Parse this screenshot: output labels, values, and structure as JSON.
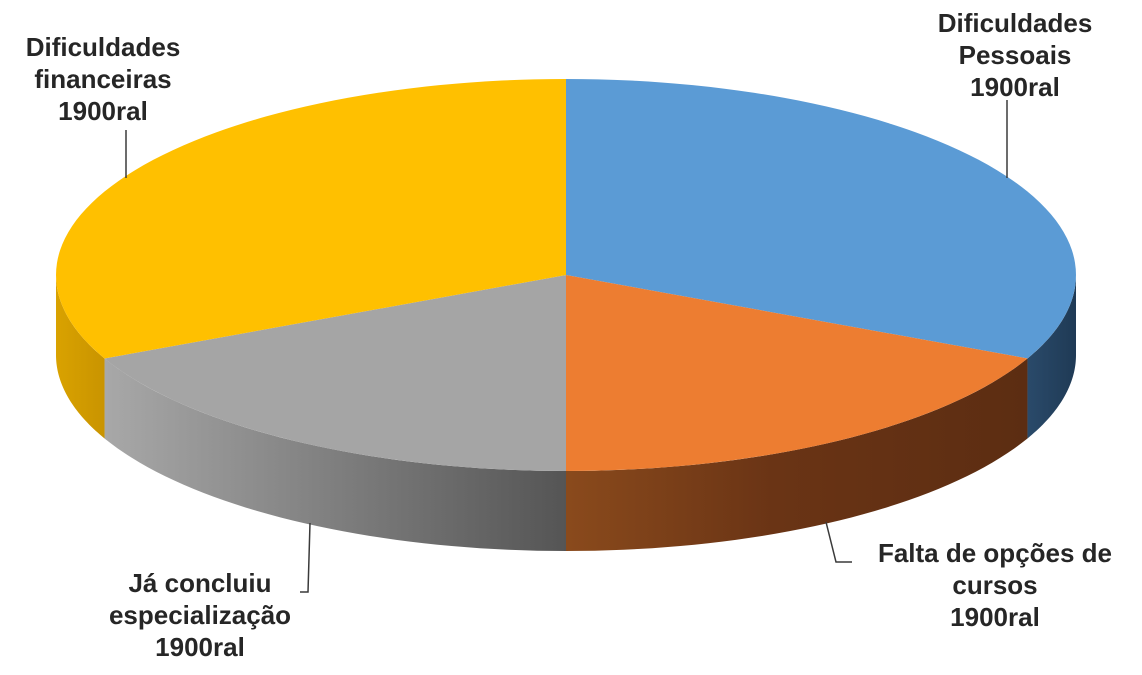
{
  "chart_data": {
    "type": "pie",
    "style": "3d",
    "title": "",
    "slices": [
      {
        "name": "Dificuldades Pessoais",
        "label_lines": [
          "Dificuldades",
          "Pessoais",
          "1900ral"
        ],
        "value": 32,
        "color": "#5b9bd5",
        "side_color": "#203b57"
      },
      {
        "name": "Falta de opções de cursos",
        "label_lines": [
          "Falta de opções de",
          "cursos",
          "1900ral"
        ],
        "value": 18,
        "color": "#ed7d31",
        "side_color": "#7b3c16"
      },
      {
        "name": "Já concluiu especialização",
        "label_lines": [
          "Já concluiu",
          "especialização",
          "1900ral"
        ],
        "value": 18,
        "color": "#a5a5a5",
        "side_color": "#7a7a7a"
      },
      {
        "name": "Dificuldades financeiras",
        "label_lines": [
          "Dificuldades",
          "financeiras",
          "1900ral"
        ],
        "value": 32,
        "color": "#ffc000",
        "side_color": "#d9a000"
      }
    ]
  }
}
